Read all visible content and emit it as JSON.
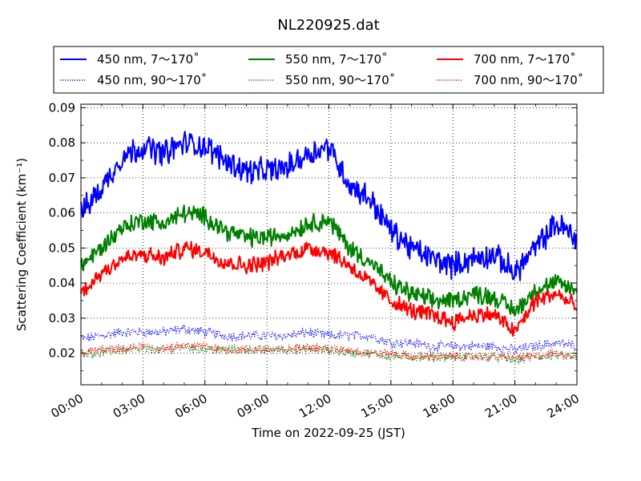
{
  "chart_data": {
    "type": "line",
    "title": "NL220925.dat",
    "xlabel": "Time on 2022-09-25 (JST)",
    "ylabel": "Scattering Coefficient (km⁻¹)",
    "xlim": [
      0,
      24
    ],
    "ylim": [
      0.011,
      0.091
    ],
    "grid": true,
    "legend_position": "top",
    "x_ticks": [
      "00:00",
      "03:00",
      "06:00",
      "09:00",
      "12:00",
      "15:00",
      "18:00",
      "21:00",
      "24:00"
    ],
    "y_ticks": [
      "0.02",
      "0.03",
      "0.04",
      "0.05",
      "0.06",
      "0.07",
      "0.08",
      "0.09"
    ],
    "x_hours": [
      0,
      1,
      2,
      3,
      4,
      5,
      6,
      7,
      8,
      9,
      10,
      11,
      12,
      13,
      14,
      15,
      16,
      17,
      18,
      19,
      20,
      21,
      22,
      23,
      24
    ],
    "series": [
      {
        "name": "450 nm, 7～170˚",
        "color": "#0000ff",
        "style": "solid",
        "noise": 0.003,
        "values": [
          0.06,
          0.067,
          0.076,
          0.079,
          0.077,
          0.08,
          0.079,
          0.075,
          0.072,
          0.072,
          0.073,
          0.077,
          0.079,
          0.068,
          0.064,
          0.055,
          0.05,
          0.047,
          0.045,
          0.047,
          0.048,
          0.043,
          0.05,
          0.057,
          0.053
        ]
      },
      {
        "name": "550 nm, 7～170˚",
        "color": "#008000",
        "style": "solid",
        "noise": 0.0022,
        "values": [
          0.045,
          0.05,
          0.056,
          0.058,
          0.057,
          0.06,
          0.059,
          0.055,
          0.053,
          0.053,
          0.054,
          0.057,
          0.058,
          0.05,
          0.046,
          0.04,
          0.037,
          0.035,
          0.035,
          0.037,
          0.036,
          0.032,
          0.038,
          0.04,
          0.038
        ]
      },
      {
        "name": "700 nm, 7～170˚",
        "color": "#ff0000",
        "style": "solid",
        "noise": 0.002,
        "values": [
          0.037,
          0.043,
          0.047,
          0.048,
          0.047,
          0.05,
          0.049,
          0.046,
          0.045,
          0.046,
          0.048,
          0.05,
          0.049,
          0.045,
          0.04,
          0.035,
          0.032,
          0.031,
          0.029,
          0.031,
          0.031,
          0.026,
          0.035,
          0.037,
          0.033
        ]
      },
      {
        "name": "450 nm, 90～170˚",
        "color": "#0000ff",
        "style": "dotted",
        "noise": 0.0012,
        "values": [
          0.024,
          0.025,
          0.026,
          0.026,
          0.026,
          0.027,
          0.026,
          0.025,
          0.025,
          0.025,
          0.025,
          0.026,
          0.025,
          0.025,
          0.025,
          0.023,
          0.023,
          0.022,
          0.022,
          0.022,
          0.022,
          0.021,
          0.022,
          0.023,
          0.022
        ]
      },
      {
        "name": "550 nm, 90～170˚",
        "color": "#008000",
        "style": "dotted",
        "noise": 0.0011,
        "values": [
          0.02,
          0.02,
          0.021,
          0.021,
          0.021,
          0.022,
          0.021,
          0.021,
          0.021,
          0.021,
          0.021,
          0.021,
          0.021,
          0.02,
          0.02,
          0.019,
          0.019,
          0.019,
          0.019,
          0.019,
          0.019,
          0.018,
          0.019,
          0.019,
          0.019
        ]
      },
      {
        "name": "700 nm, 90～170˚",
        "color": "#ff0000",
        "style": "dotted",
        "noise": 0.0011,
        "values": [
          0.02,
          0.021,
          0.021,
          0.022,
          0.021,
          0.022,
          0.022,
          0.021,
          0.021,
          0.021,
          0.021,
          0.022,
          0.021,
          0.021,
          0.02,
          0.02,
          0.019,
          0.019,
          0.019,
          0.019,
          0.019,
          0.019,
          0.019,
          0.02,
          0.019
        ]
      }
    ]
  }
}
